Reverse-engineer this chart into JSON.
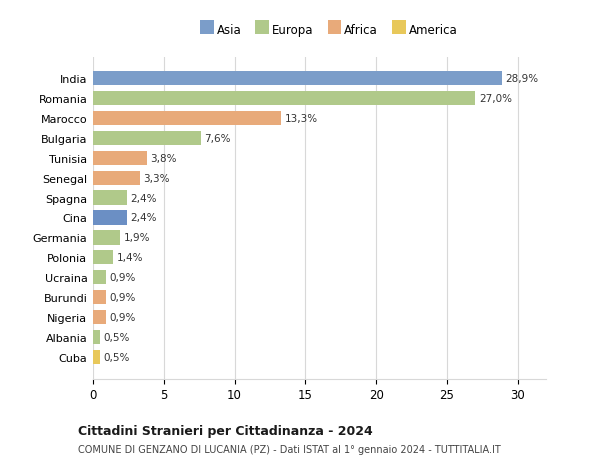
{
  "categories": [
    "India",
    "Romania",
    "Marocco",
    "Bulgaria",
    "Tunisia",
    "Senegal",
    "Spagna",
    "Cina",
    "Germania",
    "Polonia",
    "Ucraina",
    "Burundi",
    "Nigeria",
    "Albania",
    "Cuba"
  ],
  "values": [
    28.9,
    27.0,
    13.3,
    7.6,
    3.8,
    3.3,
    2.4,
    2.4,
    1.9,
    1.4,
    0.9,
    0.9,
    0.9,
    0.5,
    0.5
  ],
  "labels": [
    "28,9%",
    "27,0%",
    "13,3%",
    "7,6%",
    "3,8%",
    "3,3%",
    "2,4%",
    "2,4%",
    "1,9%",
    "1,4%",
    "0,9%",
    "0,9%",
    "0,9%",
    "0,5%",
    "0,5%"
  ],
  "colors": [
    "#7b9dc9",
    "#b0c98a",
    "#e8aa7a",
    "#b0c98a",
    "#e8aa7a",
    "#e8aa7a",
    "#b0c98a",
    "#6b8fc4",
    "#b0c98a",
    "#b0c98a",
    "#b0c98a",
    "#e8aa7a",
    "#e8aa7a",
    "#b0c98a",
    "#e8c85a"
  ],
  "legend_labels": [
    "Asia",
    "Europa",
    "Africa",
    "America"
  ],
  "legend_colors": [
    "#7b9dc9",
    "#b0c98a",
    "#e8aa7a",
    "#e8c85a"
  ],
  "title": "Cittadini Stranieri per Cittadinanza - 2024",
  "subtitle": "COMUNE DI GENZANO DI LUCANIA (PZ) - Dati ISTAT al 1° gennaio 2024 - TUTTITALIA.IT",
  "xlim": [
    0,
    32
  ],
  "xticks": [
    0,
    5,
    10,
    15,
    20,
    25,
    30
  ],
  "background_color": "#ffffff",
  "grid_color": "#d8d8d8"
}
